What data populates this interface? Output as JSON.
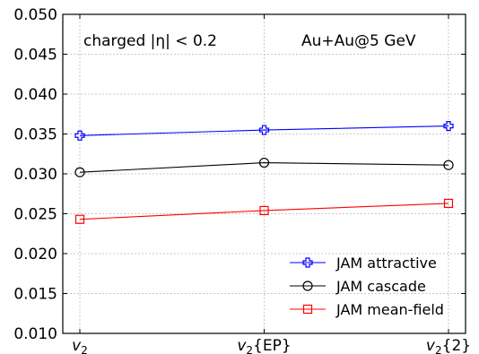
{
  "chart_data": {
    "type": "line",
    "categories": [
      "v2",
      "v2{EP}",
      "v2{2}"
    ],
    "x_tick_labels": [
      {
        "base": "v",
        "sub": "2",
        "suffix": ""
      },
      {
        "base": "v",
        "sub": "2",
        "suffix": "{EP}"
      },
      {
        "base": "v",
        "sub": "2",
        "suffix": "{2}"
      }
    ],
    "ylim": [
      0.01,
      0.05
    ],
    "y_ticks": [
      0.01,
      0.015,
      0.02,
      0.025,
      0.03,
      0.035,
      0.04,
      0.045,
      0.05
    ],
    "y_tick_labels": [
      "0.010",
      "0.015",
      "0.020",
      "0.025",
      "0.030",
      "0.035",
      "0.040",
      "0.045",
      "0.050"
    ],
    "grid": true,
    "legend_position": "bottom-right",
    "annotations": {
      "left": "charged |η| < 0.2",
      "right": "Au+Au@5 GeV"
    },
    "series": [
      {
        "name": "JAM attractive",
        "color": "#0000ff",
        "marker": "plus",
        "values": [
          0.0348,
          0.0355,
          0.036
        ]
      },
      {
        "name": "JAM cascade",
        "color": "#000000",
        "marker": "circle",
        "values": [
          0.0302,
          0.0314,
          0.0311
        ]
      },
      {
        "name": "JAM mean-field",
        "color": "#ff0000",
        "marker": "square",
        "values": [
          0.0243,
          0.0254,
          0.0263
        ]
      }
    ]
  }
}
